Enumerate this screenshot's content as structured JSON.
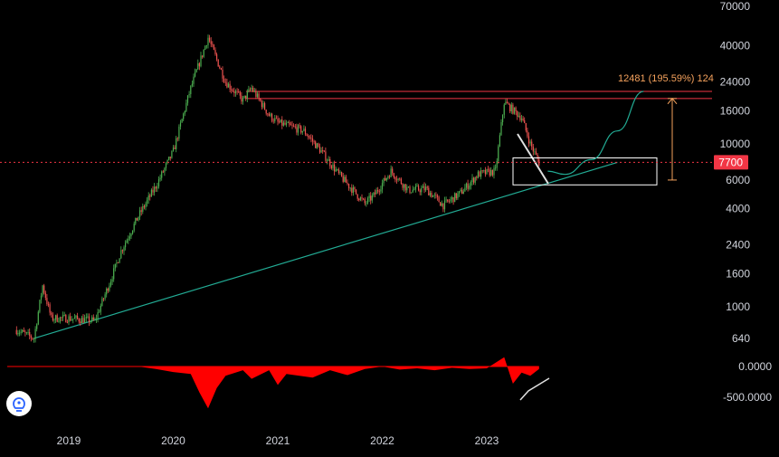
{
  "chart_data": {
    "type": "candlestick",
    "price_scale": "log",
    "price_ticks": [
      640,
      1000,
      1600,
      2400,
      4000,
      6000,
      10000,
      16000,
      24000,
      40000,
      70000
    ],
    "price_tick_labels": [
      "640",
      "1000",
      "1600",
      "2400",
      "4000",
      "6000",
      "10000",
      "16000",
      "24000",
      "40000",
      "70000"
    ],
    "x_ticks": [
      "2019",
      "2020",
      "2021",
      "2022",
      "2023"
    ],
    "current_price": 7700,
    "current_price_label": "7700",
    "target_label": "12481 (195.59%) 124",
    "indicator_ticks": [
      0,
      -500
    ],
    "indicator_tick_labels": [
      "0.0000",
      "-500.0000"
    ],
    "price_path": [
      [
        "2018-07",
        720
      ],
      [
        "2018-09",
        640
      ],
      [
        "2018-10",
        1350
      ],
      [
        "2018-11",
        850
      ],
      [
        "2019-01",
        850
      ],
      [
        "2019-04",
        820
      ],
      [
        "2019-06",
        1550
      ],
      [
        "2019-07",
        2200
      ],
      [
        "2019-09",
        3600
      ],
      [
        "2019-11",
        5500
      ],
      [
        "2020-01",
        9000
      ],
      [
        "2020-03",
        22000
      ],
      [
        "2020-05",
        45000
      ],
      [
        "2020-07",
        24000
      ],
      [
        "2020-09",
        18500
      ],
      [
        "2020-10",
        22000
      ],
      [
        "2020-12",
        15000
      ],
      [
        "2021-01",
        13500
      ],
      [
        "2021-04",
        12000
      ],
      [
        "2021-06",
        9000
      ],
      [
        "2021-08",
        6500
      ],
      [
        "2021-11",
        4300
      ],
      [
        "2021-12",
        4800
      ],
      [
        "2022-02",
        6800
      ],
      [
        "2022-04",
        5200
      ],
      [
        "2022-06",
        5300
      ],
      [
        "2022-08",
        4200
      ],
      [
        "2022-10",
        5000
      ],
      [
        "2022-12",
        6500
      ],
      [
        "2023-02",
        6800
      ],
      [
        "2023-03",
        18000
      ],
      [
        "2023-05",
        14500
      ],
      [
        "2023-06",
        10000
      ],
      [
        "2023-07",
        7700
      ]
    ],
    "indicator_path": [
      [
        "2018-07",
        0
      ],
      [
        "2019-09",
        0
      ],
      [
        "2019-11",
        -40
      ],
      [
        "2020-01",
        -90
      ],
      [
        "2020-03",
        -120
      ],
      [
        "2020-04",
        -420
      ],
      [
        "2020-05",
        -680
      ],
      [
        "2020-06",
        -350
      ],
      [
        "2020-07",
        -150
      ],
      [
        "2020-09",
        -60
      ],
      [
        "2020-10",
        -200
      ],
      [
        "2020-12",
        -60
      ],
      [
        "2021-01",
        -300
      ],
      [
        "2021-02",
        -120
      ],
      [
        "2021-05",
        -180
      ],
      [
        "2021-07",
        -60
      ],
      [
        "2021-09",
        -140
      ],
      [
        "2021-11",
        -40
      ],
      [
        "2022-01",
        0
      ],
      [
        "2022-03",
        -50
      ],
      [
        "2022-05",
        -30
      ],
      [
        "2022-07",
        -60
      ],
      [
        "2022-09",
        -20
      ],
      [
        "2022-11",
        -40
      ],
      [
        "2023-01",
        -30
      ],
      [
        "2023-03",
        150
      ],
      [
        "2023-04",
        -280
      ],
      [
        "2023-05",
        -100
      ],
      [
        "2023-06",
        -150
      ],
      [
        "2023-07",
        -40
      ]
    ],
    "trendline": [
      [
        "2018-09",
        640
      ],
      [
        "2024-04",
        7700
      ]
    ],
    "resistance_top": 21000,
    "resistance_bottom": 19000,
    "box_range": [
      5600,
      8200
    ],
    "projection": [
      [
        "2023-08",
        6800
      ],
      [
        "2023-10",
        6500
      ],
      [
        "2024-01",
        8000
      ],
      [
        "2024-04",
        12000
      ],
      [
        "2024-07",
        21000
      ]
    ],
    "target_arrow_range": [
      6000,
      19000
    ]
  },
  "colors": {
    "background": "#000000",
    "up": "#4caf50",
    "down": "#ef5350",
    "trendline": "#22ab94",
    "resistance": "#f23645",
    "dotted_price": "#f23645",
    "price_badge": "#f23645",
    "target_text": "#f5a25d",
    "axis_text": "#d1d4dc",
    "indicator": "#ff0000"
  },
  "logo": {
    "icon": "bulb-logo-icon"
  }
}
